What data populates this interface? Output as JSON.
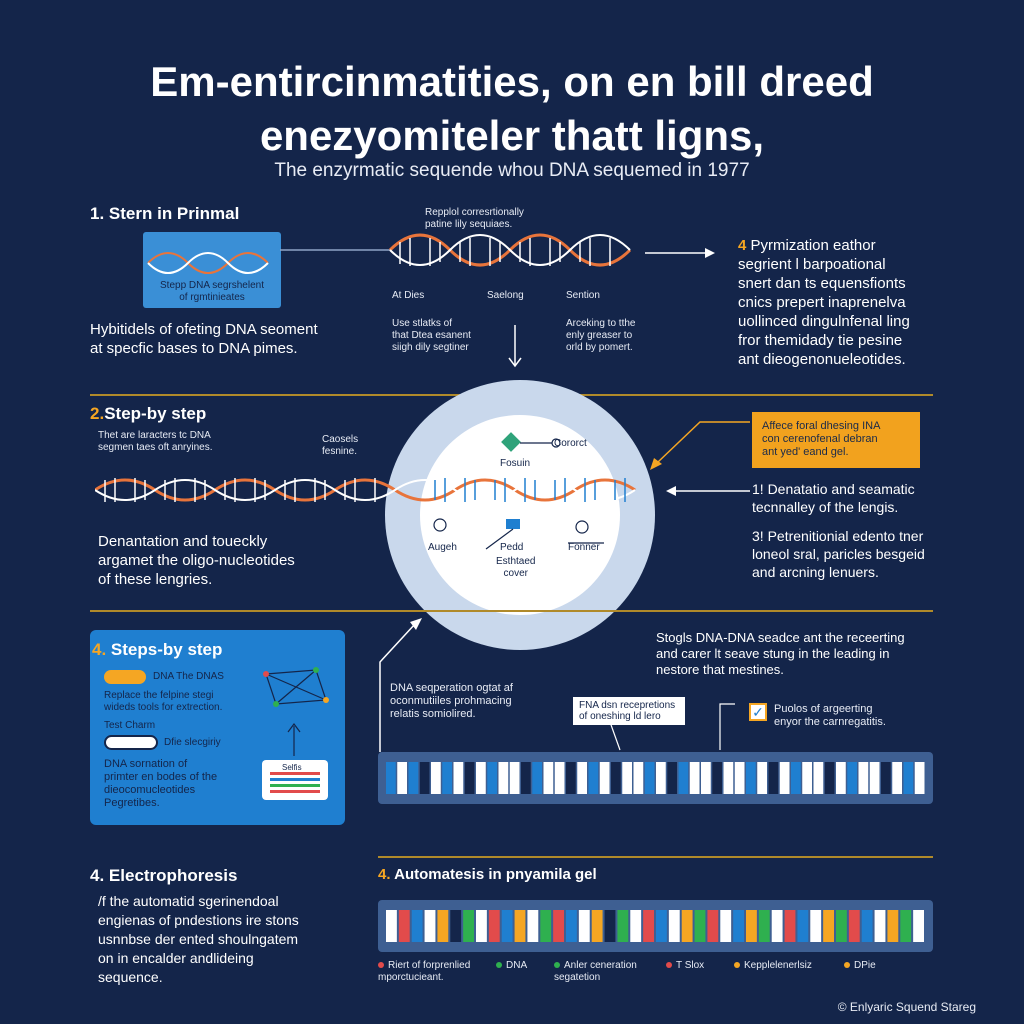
{
  "title_line1": "Em-entircinmatities, on en bill dreed",
  "title_line2": "enezyomiteler thatt ligns,",
  "subtitle": "The enzyrmatic sequende whou DNA sequemed in 1977",
  "section1": {
    "heading_num": "1.",
    "heading_text": "Stern in Prinmal",
    "card_text": "Stepp DNA segrshelent\nof rgmtinieates",
    "body": "Hybitidels of ofeting DNA seoment\nat specfic bases to DNA pimes.",
    "top_callout": "Repplol corresrtionally\npatine lily sequiaes.",
    "helix_labels": [
      "At Dies",
      "Saelong",
      "Sention"
    ],
    "mid_note_left": "Use stlatks of\nthat Dtea esanent\nsiigh dily segtiner",
    "mid_note_right": "Arceking to tthe\nenly greaser to\norld by pomert."
  },
  "step4_right": {
    "num": "4",
    "text": "Pyrmization eathor\nsegrient l barpoational\nsnert dan ts equensfionts\ncnics prepert inaprenelva\nuollinced dingulnfenal ling\nfror themidady tie pesine\nant dieogenonueleotides."
  },
  "section2": {
    "heading_num": "2.",
    "heading_text": "Step-by step",
    "sub": "Thet are laracters tc DNA\nsegmen taes oft anryines.",
    "callout_small": "Caosels\nfesnine.",
    "body": "Denantation and toueckly\nargamet the oligo-nucleotides\nof these lengries."
  },
  "circle": {
    "label_top_left": "Fosuin",
    "label_top_right": "Cororct",
    "label_bottom_left": "Augeh",
    "label_bottom_mid": "Pedd",
    "label_bottom_mid2": "Esthtaed\ncover",
    "label_bottom_right": "Fonner"
  },
  "orange_box": "Affece foral dhesing INA\ncon cerenofenal debran\nant yed' eand gel.",
  "right_mid": {
    "item1": "1! Denatatio and seamatic\n    tecnnalley of the lengis.",
    "item2": "3! Petrenitionial edento tner\n    loneol sral, paricles besgeid\n    and arcning lenuers."
  },
  "section3": {
    "heading_num": "4.",
    "heading_text": "Steps-by step",
    "row1_tag": "DNA The DNAS",
    "row1_text": "Replace the felpine stegi\n wideds tools for extrection.",
    "toggle_label": "Test Charm",
    "toggle_text": "Dfie slecgiriy",
    "body": "DNA sornation of\nprimter en bodes of the\ndieocomucleotides\nPegretibes.",
    "mini_label": "Selfis"
  },
  "right_lower": {
    "text": "Stogls DNA-DNA seadce ant the receerting\nand carer lt seave stung in the leading in\nnestore that mestines.",
    "left_note": "DNA seqperation ogtat af\noconmutiiles prohmacing\nrelatis somiolired.",
    "callout_fna": "FNA dsn recepretions\nof oneshing ld lero",
    "check_text": "Puolos of argeerting\nenyor the carnregatitis."
  },
  "section4": {
    "heading_num": "4.",
    "heading_text": "Electrophoresis",
    "body": "/f the automatid sgerinendoal\nengienas of pndestions ire stons\nusnnbse der ented shoulngatem\non in encalder andlideing\nsequence."
  },
  "section5": {
    "heading_num": "4.",
    "heading_text": "Automatesis in pnyamila gel"
  },
  "legend": [
    {
      "color": "#e24b4b",
      "label": "Riert of forprenlied\nmporctucieant."
    },
    {
      "color": "#2fb04f",
      "label": "DNA"
    },
    {
      "color": "#2fb04f",
      "label": "Anler ceneration\nsegatetion"
    },
    {
      "color": "#e24b4b",
      "label": "T Slox"
    },
    {
      "color": "#f5a623",
      "label": "Kepplelenerlsiz"
    },
    {
      "color": "#f5a623",
      "label": "DPie"
    }
  ],
  "footer": "© Enlyaric Squend Stareg",
  "colors": {
    "background": "#14254a",
    "accent_orange": "#f5a623",
    "panel_blue": "#1f7fd0",
    "helix_orange": "#e8743b"
  }
}
